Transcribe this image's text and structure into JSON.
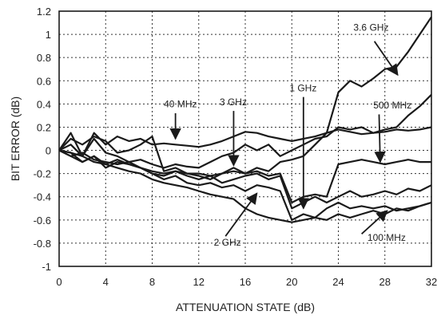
{
  "chart_data": {
    "type": "line",
    "xlabel": "ATTENUATION STATE (dB)",
    "ylabel": "BIT ERROR (dB)",
    "xlim": [
      0,
      32
    ],
    "ylim": [
      -1,
      1.2
    ],
    "xticks": [
      0,
      4,
      8,
      12,
      16,
      20,
      24,
      28,
      32
    ],
    "yticks": [
      -1,
      -0.8,
      -0.6,
      -0.4,
      -0.2,
      0,
      0.2,
      0.4,
      0.6,
      0.8,
      1,
      1.2
    ],
    "ytick_labels": [
      "-1",
      "-0.8",
      "-0.6",
      "-0.4",
      "-0.2",
      "0",
      "0.2",
      "0.4",
      "0.6",
      "0.8",
      "1",
      "1.2"
    ],
    "grid": "dashed",
    "series_color": "#1a1a1a",
    "series": [
      {
        "name": "40 MHz",
        "x": [
          0,
          1,
          2,
          3,
          4,
          5,
          6,
          7,
          8,
          9,
          10,
          11,
          12,
          13,
          14,
          15,
          16,
          17,
          18,
          19,
          20,
          21,
          22,
          23,
          24,
          25,
          26,
          27,
          28,
          29,
          30,
          31,
          32
        ],
        "y": [
          0,
          0.15,
          -0.05,
          0.15,
          0.05,
          0.12,
          0.08,
          0.1,
          0.05,
          0.06,
          0.05,
          0.04,
          0.03,
          0.05,
          0.08,
          0.12,
          0.16,
          0.15,
          0.12,
          0.1,
          0.08,
          0.1,
          0.12,
          0.15,
          0.18,
          0.16,
          0.14,
          0.15,
          0.16,
          0.18,
          0.17,
          0.18,
          0.2
        ]
      },
      {
        "name": "3 GHz",
        "x": [
          0,
          1,
          2,
          3,
          4,
          5,
          6,
          7,
          8,
          9,
          10,
          11,
          12,
          13,
          14,
          15,
          16,
          17,
          18,
          19,
          20,
          21,
          22,
          23,
          24,
          25,
          26,
          27,
          28,
          29,
          30,
          31,
          32
        ],
        "y": [
          0,
          0.05,
          -0.05,
          0.1,
          -0.02,
          -0.05,
          -0.1,
          -0.08,
          -0.12,
          -0.15,
          -0.12,
          -0.14,
          -0.15,
          -0.1,
          -0.05,
          -0.02,
          0.05,
          0.0,
          0.05,
          -0.05,
          0.0,
          0.05,
          0.1,
          0.12,
          0.2,
          0.18,
          0.2,
          0.15,
          0.18,
          0.2,
          0.3,
          0.38,
          0.48
        ]
      },
      {
        "name": "1 GHz",
        "x": [
          0,
          1,
          2,
          3,
          4,
          5,
          6,
          7,
          8,
          9,
          10,
          11,
          12,
          13,
          14,
          15,
          16,
          17,
          18,
          19,
          20,
          21,
          22,
          23,
          24,
          25,
          26,
          27,
          28,
          29,
          30,
          31,
          32
        ],
        "y": [
          0,
          -0.05,
          -0.1,
          -0.05,
          -0.15,
          -0.1,
          -0.12,
          -0.15,
          -0.2,
          -0.22,
          -0.18,
          -0.22,
          -0.25,
          -0.22,
          -0.28,
          -0.25,
          -0.22,
          -0.2,
          -0.25,
          -0.22,
          -0.5,
          -0.45,
          -0.4,
          -0.45,
          -0.4,
          -0.35,
          -0.4,
          -0.38,
          -0.35,
          -0.38,
          -0.33,
          -0.35,
          -0.3
        ]
      },
      {
        "name": "500 MHz",
        "x": [
          0,
          1,
          2,
          3,
          4,
          5,
          6,
          7,
          8,
          9,
          10,
          11,
          12,
          13,
          14,
          15,
          16,
          17,
          18,
          19,
          20,
          21,
          22,
          23,
          24,
          25,
          26,
          27,
          28,
          29,
          30,
          31,
          32
        ],
        "y": [
          0,
          -0.02,
          -0.1,
          -0.05,
          -0.12,
          -0.08,
          -0.12,
          -0.15,
          -0.18,
          -0.2,
          -0.18,
          -0.2,
          -0.2,
          -0.22,
          -0.2,
          -0.18,
          -0.2,
          -0.18,
          -0.22,
          -0.2,
          -0.45,
          -0.4,
          -0.38,
          -0.4,
          -0.12,
          -0.1,
          -0.08,
          -0.1,
          -0.12,
          -0.1,
          -0.08,
          -0.1,
          -0.1
        ]
      },
      {
        "name": "3.6 GHz",
        "x": [
          0,
          1,
          2,
          3,
          4,
          5,
          6,
          7,
          8,
          9,
          10,
          11,
          12,
          13,
          14,
          15,
          16,
          17,
          18,
          19,
          20,
          21,
          22,
          23,
          24,
          25,
          26,
          27,
          28,
          29,
          30,
          31,
          32
        ],
        "y": [
          0,
          0.1,
          0.05,
          0.12,
          0.08,
          -0.02,
          0.0,
          0.05,
          0.12,
          -0.18,
          -0.15,
          -0.2,
          -0.22,
          -0.25,
          -0.2,
          -0.15,
          -0.2,
          -0.15,
          -0.18,
          -0.1,
          -0.08,
          -0.05,
          0.05,
          0.15,
          0.5,
          0.6,
          0.55,
          0.62,
          0.7,
          0.72,
          0.85,
          1.0,
          1.15
        ]
      },
      {
        "name": "2 GHz",
        "x": [
          0,
          1,
          2,
          3,
          4,
          5,
          6,
          7,
          8,
          9,
          10,
          11,
          12,
          13,
          14,
          15,
          16,
          17,
          18,
          19,
          20,
          21,
          22,
          23,
          24,
          25,
          26,
          27,
          28,
          29,
          30,
          31,
          32
        ],
        "y": [
          0,
          -0.05,
          -0.02,
          -0.08,
          -0.1,
          -0.12,
          -0.1,
          -0.15,
          -0.2,
          -0.25,
          -0.22,
          -0.28,
          -0.3,
          -0.28,
          -0.32,
          -0.3,
          -0.35,
          -0.3,
          -0.32,
          -0.35,
          -0.6,
          -0.55,
          -0.58,
          -0.5,
          -0.45,
          -0.5,
          -0.48,
          -0.5,
          -0.48,
          -0.52,
          -0.5,
          -0.48,
          -0.45
        ]
      },
      {
        "name": "100 MHz",
        "x": [
          0,
          1,
          2,
          3,
          4,
          5,
          6,
          7,
          8,
          9,
          10,
          11,
          12,
          13,
          14,
          15,
          16,
          17,
          18,
          19,
          20,
          21,
          22,
          23,
          24,
          25,
          26,
          27,
          28,
          29,
          30,
          31,
          32
        ],
        "y": [
          0,
          -0.02,
          -0.05,
          -0.1,
          -0.12,
          -0.15,
          -0.18,
          -0.2,
          -0.25,
          -0.28,
          -0.3,
          -0.32,
          -0.35,
          -0.38,
          -0.4,
          -0.42,
          -0.5,
          -0.55,
          -0.58,
          -0.6,
          -0.62,
          -0.6,
          -0.58,
          -0.6,
          -0.55,
          -0.58,
          -0.55,
          -0.52,
          -0.55,
          -0.5,
          -0.52,
          -0.48,
          -0.45
        ]
      }
    ],
    "annotations": [
      {
        "text": "3.6 GHz",
        "x": 25.3,
        "y": 1.03,
        "ax": 27.1,
        "ay": 0.94,
        "tx": 29.1,
        "ty": 0.65
      },
      {
        "text": "40 MHz",
        "x": 9.0,
        "y": 0.37,
        "ax": 10.0,
        "ay": 0.32,
        "tx": 10.0,
        "ty": 0.1
      },
      {
        "text": "3 GHz",
        "x": 13.8,
        "y": 0.39,
        "ax": 15.0,
        "ay": 0.34,
        "tx": 15.0,
        "ty": -0.13
      },
      {
        "text": "1 GHz",
        "x": 19.8,
        "y": 0.51,
        "ax": 21.0,
        "ay": 0.46,
        "tx": 21.0,
        "ty": -0.5
      },
      {
        "text": "500 MHz",
        "x": 27.0,
        "y": 0.36,
        "ax": 27.5,
        "ay": 0.31,
        "tx": 27.6,
        "ty": -0.1
      },
      {
        "text": "2 GHz",
        "x": 13.3,
        "y": -0.82,
        "ax": 14.3,
        "ay": -0.74,
        "tx": 17.0,
        "ty": -0.37
      },
      {
        "text": "100 MHz",
        "x": 26.5,
        "y": -0.78,
        "ax": 26.0,
        "ay": -0.72,
        "tx": 28.2,
        "ty": -0.52
      }
    ]
  }
}
